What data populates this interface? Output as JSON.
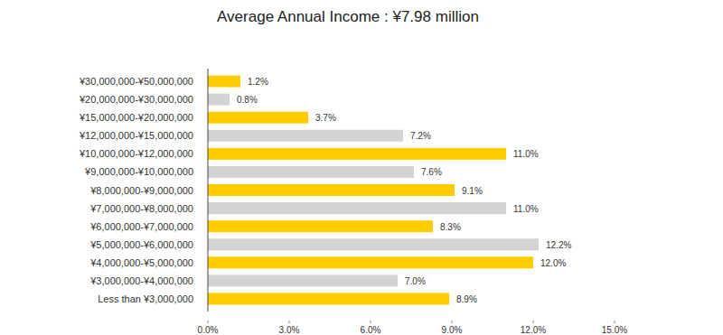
{
  "chart_data": {
    "type": "bar",
    "orientation": "horizontal",
    "title": "Average Annual Income : ¥7.98 million",
    "categories": [
      "¥30,000,000-¥50,000,000",
      "¥20,000,000-¥30,000,000",
      "¥15,000,000-¥20,000,000",
      "¥12,000,000-¥15,000,000",
      "¥10,000,000-¥12,000,000",
      "¥9,000,000-¥10,000,000",
      "¥8,000,000-¥9,000,000",
      "¥7,000,000-¥8,000,000",
      "¥6,000,000-¥7,000,000",
      "¥5,000,000-¥6,000,000",
      "¥4,000,000-¥5,000,000",
      "¥3,000,000-¥4,000,000",
      "Less than ¥3,000,000"
    ],
    "values": [
      1.2,
      0.8,
      3.7,
      7.2,
      11.0,
      7.6,
      9.1,
      11.0,
      8.3,
      12.2,
      12.0,
      7.0,
      8.9
    ],
    "value_labels": [
      "1.2%",
      "0.8%",
      "3.7%",
      "7.2%",
      "11.0%",
      "7.6%",
      "9.1%",
      "11.0%",
      "8.3%",
      "12.2%",
      "12.0%",
      "7.0%",
      "8.9%"
    ],
    "colors": [
      "#ffcc00",
      "#d3d3d3",
      "#ffcc00",
      "#d3d3d3",
      "#ffcc00",
      "#d3d3d3",
      "#ffcc00",
      "#d3d3d3",
      "#ffcc00",
      "#d3d3d3",
      "#ffcc00",
      "#d3d3d3",
      "#ffcc00"
    ],
    "xlim": [
      0,
      15
    ],
    "xticks": [
      {
        "value": 0,
        "label": "0.0%"
      },
      {
        "value": 3,
        "label": "3.0%"
      },
      {
        "value": 6,
        "label": "6.0%"
      },
      {
        "value": 9,
        "label": "9.0%"
      },
      {
        "value": 12,
        "label": "12.0%"
      },
      {
        "value": 15,
        "label": "15.0%"
      }
    ],
    "grid": false,
    "data_labels": true
  }
}
